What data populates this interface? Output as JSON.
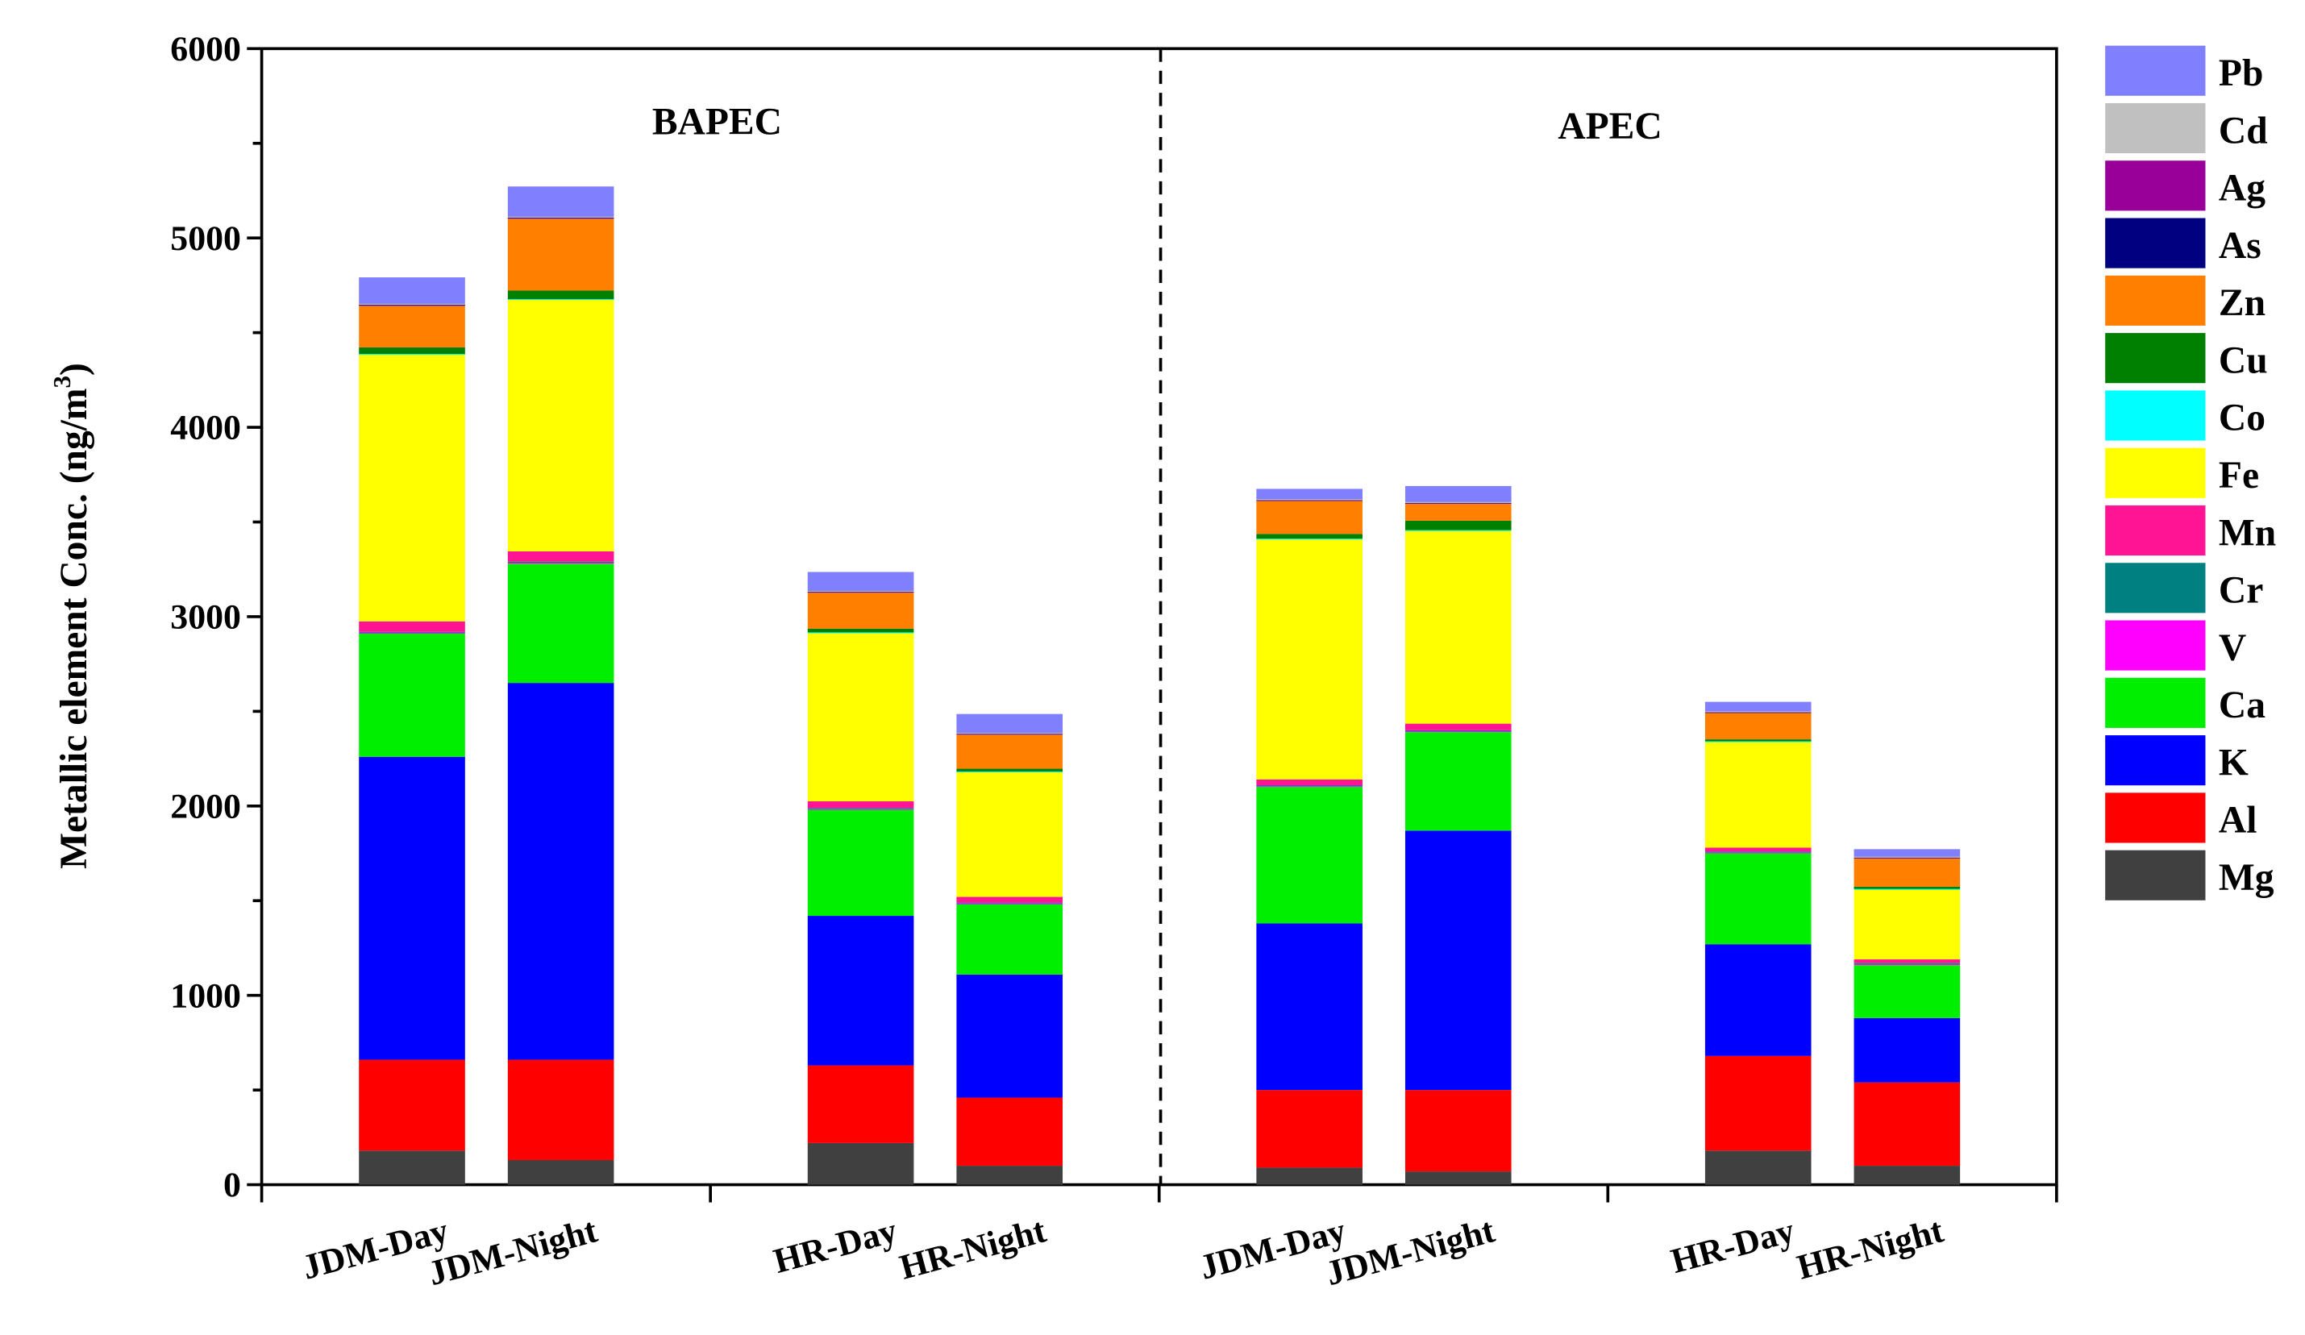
{
  "chart_data": {
    "type": "bar",
    "stacked": true,
    "ylabel": "Metallic element Conc. (ng/m",
    "ylabel_superscript": "3",
    "ylabel_close": ")",
    "ylim": [
      0,
      6000
    ],
    "yticks": [
      0,
      1000,
      2000,
      3000,
      4000,
      5000,
      6000
    ],
    "tick_labels": [
      "0",
      "1000",
      "2000",
      "3000",
      "4000",
      "5000",
      "6000"
    ],
    "panels": [
      "BAPEC",
      "APEC"
    ],
    "legend_position": "right",
    "categories": [
      "JDM-Day",
      "JDM-Night",
      "HR-Day",
      "HR-Night",
      "JDM-Day",
      "JDM-Night",
      "HR-Day",
      "HR-Night"
    ],
    "category_panels": [
      0,
      0,
      0,
      0,
      1,
      1,
      1,
      1
    ],
    "series": [
      {
        "name": "Mg",
        "color": "#404040",
        "values": [
          180,
          130,
          220,
          100,
          90,
          70,
          180,
          100
        ]
      },
      {
        "name": "Al",
        "color": "#ff0000",
        "values": [
          480,
          530,
          410,
          360,
          410,
          430,
          500,
          440
        ]
      },
      {
        "name": "K",
        "color": "#0000ff",
        "values": [
          1600,
          1990,
          790,
          650,
          880,
          1370,
          590,
          340
        ]
      },
      {
        "name": "Ca",
        "color": "#00ee00",
        "values": [
          650,
          630,
          560,
          370,
          720,
          520,
          480,
          280
        ]
      },
      {
        "name": "V",
        "color": "#ff00ff",
        "values": [
          5,
          5,
          5,
          5,
          5,
          5,
          5,
          5
        ]
      },
      {
        "name": "Cr",
        "color": "#008080",
        "values": [
          5,
          5,
          5,
          5,
          5,
          5,
          5,
          5
        ]
      },
      {
        "name": "Mn",
        "color": "#ff1493",
        "values": [
          55,
          55,
          35,
          30,
          30,
          35,
          20,
          20
        ]
      },
      {
        "name": "Fe",
        "color": "#ffff00",
        "values": [
          1410,
          1330,
          890,
          660,
          1270,
          1020,
          560,
          370
        ]
      },
      {
        "name": "Co",
        "color": "#00ffff",
        "values": [
          2,
          2,
          2,
          2,
          2,
          2,
          2,
          2
        ]
      },
      {
        "name": "Cu",
        "color": "#008000",
        "values": [
          35,
          45,
          20,
          15,
          25,
          50,
          10,
          12
        ]
      },
      {
        "name": "Zn",
        "color": "#ff8000",
        "values": [
          220,
          380,
          190,
          180,
          175,
          90,
          140,
          150
        ]
      },
      {
        "name": "As",
        "color": "#000080",
        "values": [
          6,
          6,
          5,
          5,
          4,
          4,
          4,
          4
        ]
      },
      {
        "name": "Ag",
        "color": "#990099",
        "values": [
          2,
          2,
          2,
          2,
          2,
          2,
          2,
          2
        ]
      },
      {
        "name": "Cd",
        "color": "#c0c0c0",
        "values": [
          2,
          2,
          2,
          2,
          2,
          2,
          2,
          2
        ]
      },
      {
        "name": "Pb",
        "color": "#8080ff",
        "values": [
          140,
          160,
          100,
          100,
          55,
          85,
          50,
          40
        ]
      }
    ]
  }
}
